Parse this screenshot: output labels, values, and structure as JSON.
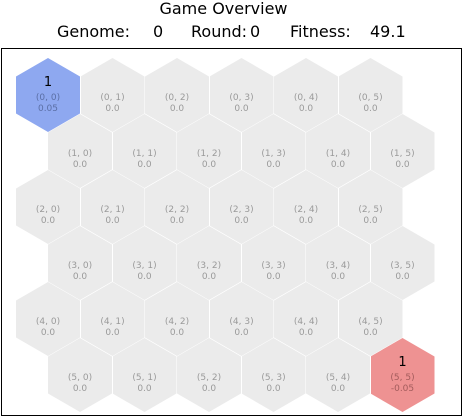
{
  "header": {
    "title": "Game Overview",
    "genome_label": "Genome:",
    "genome_value": "0",
    "round_label": "Round:",
    "round_value": "0",
    "fitness_label": "Fitness:",
    "fitness_value": "49.1"
  },
  "colors": {
    "empty": "#ebebeb",
    "player1": "#8ea8f0",
    "opponent": "#ee9292"
  },
  "grid": {
    "rows": 6,
    "cols": 6,
    "cells": [
      [
        {
          "coord": "(0, 0)",
          "value": "0.05",
          "owner": "1",
          "state": "blue"
        },
        {
          "coord": "(0, 1)",
          "value": "0.0"
        },
        {
          "coord": "(0, 2)",
          "value": "0.0"
        },
        {
          "coord": "(0, 3)",
          "value": "0.0"
        },
        {
          "coord": "(0, 4)",
          "value": "0.0"
        },
        {
          "coord": "(0, 5)",
          "value": "0.0"
        }
      ],
      [
        {
          "coord": "(1, 0)",
          "value": "0.0"
        },
        {
          "coord": "(1, 1)",
          "value": "0.0"
        },
        {
          "coord": "(1, 2)",
          "value": "0.0"
        },
        {
          "coord": "(1, 3)",
          "value": "0.0"
        },
        {
          "coord": "(1, 4)",
          "value": "0.0"
        },
        {
          "coord": "(1, 5)",
          "value": "0.0"
        }
      ],
      [
        {
          "coord": "(2, 0)",
          "value": "0.0"
        },
        {
          "coord": "(2, 1)",
          "value": "0.0"
        },
        {
          "coord": "(2, 2)",
          "value": "0.0"
        },
        {
          "coord": "(2, 3)",
          "value": "0.0"
        },
        {
          "coord": "(2, 4)",
          "value": "0.0"
        },
        {
          "coord": "(2, 5)",
          "value": "0.0"
        }
      ],
      [
        {
          "coord": "(3, 0)",
          "value": "0.0"
        },
        {
          "coord": "(3, 1)",
          "value": "0.0"
        },
        {
          "coord": "(3, 2)",
          "value": "0.0"
        },
        {
          "coord": "(3, 3)",
          "value": "0.0"
        },
        {
          "coord": "(3, 4)",
          "value": "0.0"
        },
        {
          "coord": "(3, 5)",
          "value": "0.0"
        }
      ],
      [
        {
          "coord": "(4, 0)",
          "value": "0.0"
        },
        {
          "coord": "(4, 1)",
          "value": "0.0"
        },
        {
          "coord": "(4, 2)",
          "value": "0.0"
        },
        {
          "coord": "(4, 3)",
          "value": "0.0"
        },
        {
          "coord": "(4, 4)",
          "value": "0.0"
        },
        {
          "coord": "(4, 5)",
          "value": "0.0"
        }
      ],
      [
        {
          "coord": "(5, 0)",
          "value": "0.0"
        },
        {
          "coord": "(5, 1)",
          "value": "0.0"
        },
        {
          "coord": "(5, 2)",
          "value": "0.0"
        },
        {
          "coord": "(5, 3)",
          "value": "0.0"
        },
        {
          "coord": "(5, 4)",
          "value": "0.0"
        },
        {
          "coord": "(5, 5)",
          "value": "-0.05",
          "owner": "1",
          "state": "red"
        }
      ]
    ]
  }
}
